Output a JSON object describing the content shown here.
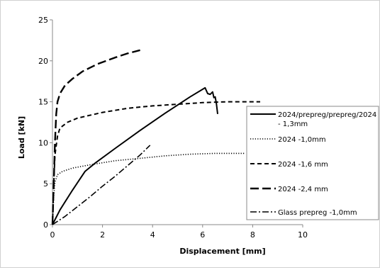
{
  "chart_data": {
    "type": "line",
    "title": "",
    "xlabel": "Displacement  [mm]",
    "ylabel": "Load  [kN]",
    "xlim": [
      0,
      10
    ],
    "ylim": [
      0,
      25
    ],
    "xticks": [
      "0",
      "2",
      "4",
      "6",
      "8",
      "10"
    ],
    "yticks": [
      "0",
      "5",
      "10",
      "15",
      "20",
      "25"
    ],
    "grid": false,
    "legend_position": "right",
    "series": [
      {
        "name": "2024/prepreg/prepreg/2024 - 1,3mm",
        "style": "solid",
        "x": [
          0,
          0.3,
          0.8,
          1.3,
          1.7,
          2.5,
          3.5,
          4.5,
          5.5,
          6.1,
          6.2,
          6.3,
          6.4,
          6.45,
          6.5,
          6.55,
          6.6
        ],
        "y": [
          0,
          1.8,
          4.2,
          6.5,
          7.5,
          9.3,
          11.5,
          13.6,
          15.6,
          16.7,
          16.0,
          15.9,
          16.2,
          15.5,
          15.6,
          14.8,
          13.5
        ]
      },
      {
        "name": "2024 -1,0mm",
        "style": "dotted",
        "x": [
          0,
          0.05,
          0.1,
          0.2,
          0.4,
          0.8,
          1.5,
          2.5,
          3.5,
          4.5,
          5.5,
          6.5,
          7.5,
          7.7
        ],
        "y": [
          0,
          3.5,
          5.2,
          6.1,
          6.5,
          6.9,
          7.3,
          7.8,
          8.1,
          8.4,
          8.6,
          8.7,
          8.7,
          8.7
        ]
      },
      {
        "name": "2024 -1,6 mm",
        "style": "dashed",
        "x": [
          0,
          0.05,
          0.1,
          0.2,
          0.3,
          0.6,
          1.0,
          2.0,
          3.0,
          4.0,
          5.0,
          6.0,
          7.0,
          8.3
        ],
        "y": [
          0,
          5.0,
          8.5,
          10.8,
          11.8,
          12.5,
          13.0,
          13.7,
          14.2,
          14.5,
          14.7,
          14.9,
          15.0,
          15.0
        ]
      },
      {
        "name": "2024 -2,4 mm",
        "style": "longdash",
        "x": [
          0,
          0.05,
          0.1,
          0.15,
          0.2,
          0.3,
          0.5,
          0.8,
          1.2,
          1.8,
          2.5,
          3.0,
          3.5
        ],
        "y": [
          0,
          5.0,
          10.0,
          13.5,
          15.0,
          16.0,
          17.0,
          17.8,
          18.7,
          19.6,
          20.4,
          20.9,
          21.3
        ]
      },
      {
        "name": "Glass prepreg -1,0mm",
        "style": "dashdot",
        "x": [
          0,
          0.5,
          1.0,
          1.5,
          2.0,
          2.5,
          3.0,
          3.5,
          3.9
        ],
        "y": [
          0,
          1.0,
          2.2,
          3.4,
          4.7,
          5.9,
          7.2,
          8.5,
          9.7
        ]
      }
    ]
  }
}
